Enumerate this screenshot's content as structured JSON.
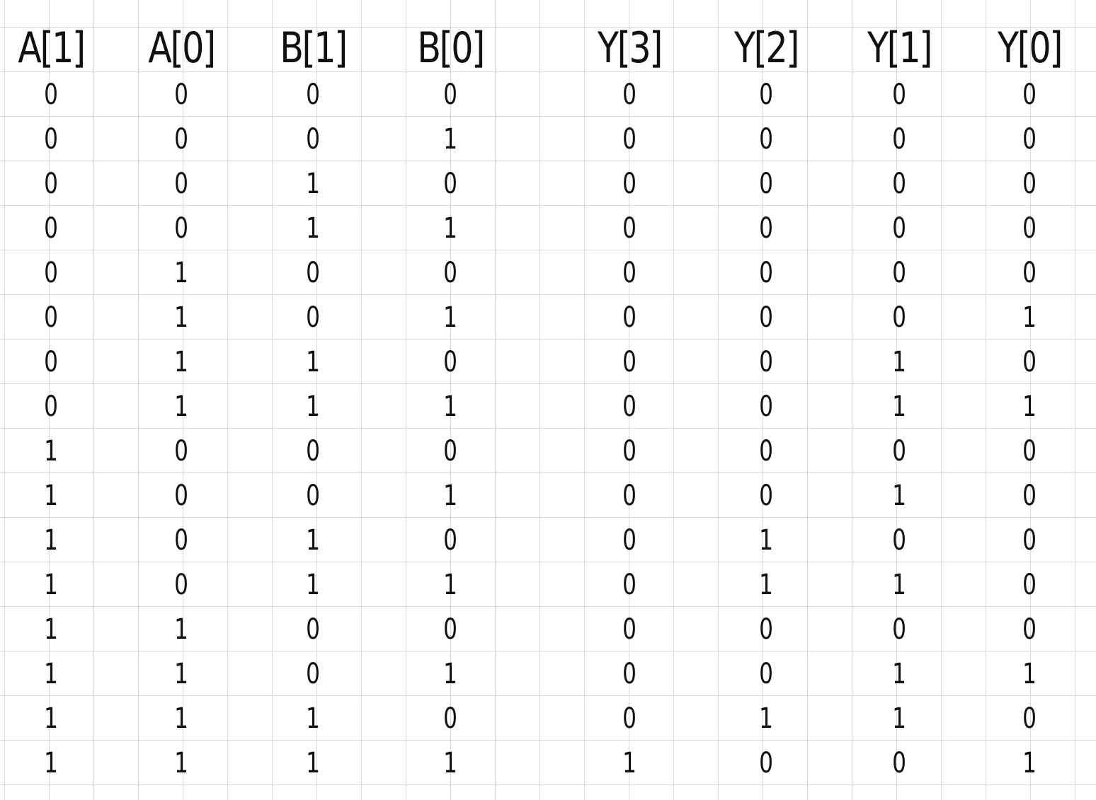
{
  "truth_table": {
    "columns": [
      "A[1]",
      "A[0]",
      "B[1]",
      "B[0]",
      "Y[3]",
      "Y[2]",
      "Y[1]",
      "Y[0]"
    ],
    "rows": [
      [
        "0",
        "0",
        "0",
        "0",
        "0",
        "0",
        "0",
        "0"
      ],
      [
        "0",
        "0",
        "0",
        "1",
        "0",
        "0",
        "0",
        "0"
      ],
      [
        "0",
        "0",
        "1",
        "0",
        "0",
        "0",
        "0",
        "0"
      ],
      [
        "0",
        "0",
        "1",
        "1",
        "0",
        "0",
        "0",
        "0"
      ],
      [
        "0",
        "1",
        "0",
        "0",
        "0",
        "0",
        "0",
        "0"
      ],
      [
        "0",
        "1",
        "0",
        "1",
        "0",
        "0",
        "0",
        "1"
      ],
      [
        "0",
        "1",
        "1",
        "0",
        "0",
        "0",
        "1",
        "0"
      ],
      [
        "0",
        "1",
        "1",
        "1",
        "0",
        "0",
        "1",
        "1"
      ],
      [
        "1",
        "0",
        "0",
        "0",
        "0",
        "0",
        "0",
        "0"
      ],
      [
        "1",
        "0",
        "0",
        "1",
        "0",
        "0",
        "1",
        "0"
      ],
      [
        "1",
        "0",
        "1",
        "0",
        "0",
        "1",
        "0",
        "0"
      ],
      [
        "1",
        "0",
        "1",
        "1",
        "0",
        "1",
        "1",
        "0"
      ],
      [
        "1",
        "1",
        "0",
        "0",
        "0",
        "0",
        "0",
        "0"
      ],
      [
        "1",
        "1",
        "0",
        "1",
        "0",
        "0",
        "1",
        "1"
      ],
      [
        "1",
        "1",
        "1",
        "0",
        "0",
        "1",
        "1",
        "0"
      ],
      [
        "1",
        "1",
        "1",
        "1",
        "1",
        "0",
        "0",
        "1"
      ]
    ]
  }
}
